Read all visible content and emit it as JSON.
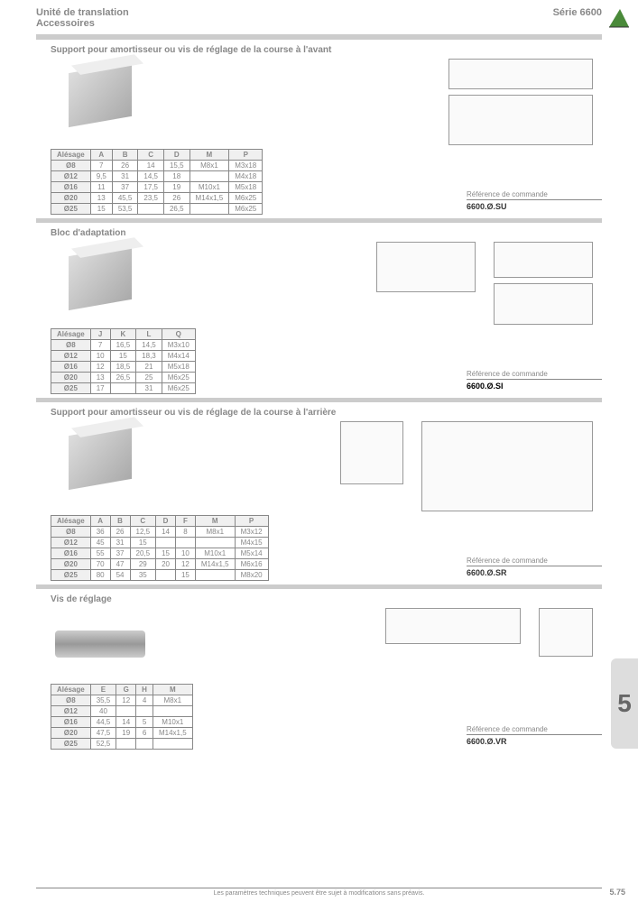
{
  "header": {
    "left1": "Unité de translation",
    "left2": "Accessoires",
    "right": "Série 6600"
  },
  "logo": {
    "fill": "#4a8a3a"
  },
  "sections": [
    {
      "title": "Support pour amortisseur ou vis de réglage de la course à l'avant",
      "cols": [
        "Alésage",
        "A",
        "B",
        "C",
        "D",
        "M",
        "P"
      ],
      "rows": [
        [
          "Ø8",
          "7",
          "26",
          "14",
          "15,5",
          "M8x1",
          "M3x18"
        ],
        [
          "Ø12",
          "9,5",
          "31",
          "14,5",
          "18",
          "",
          "M4x18"
        ],
        [
          "Ø16",
          "11",
          "37",
          "17,5",
          "19",
          "M10x1",
          "M5x18"
        ],
        [
          "Ø20",
          "13",
          "45,5",
          "23,5",
          "26",
          "M14x1,5",
          "M6x25"
        ],
        [
          "Ø25",
          "15",
          "53,5",
          "",
          "26,5",
          "",
          "M6x25"
        ]
      ],
      "ref": {
        "label": "Référence de commande",
        "value": "6600.Ø.SU"
      }
    },
    {
      "title": "Bloc d'adaptation",
      "cols": [
        "Alésage",
        "J",
        "K",
        "L",
        "Q"
      ],
      "rows": [
        [
          "Ø8",
          "7",
          "16,5",
          "14,5",
          "M3x10"
        ],
        [
          "Ø12",
          "10",
          "15",
          "18,3",
          "M4x14"
        ],
        [
          "Ø16",
          "12",
          "18,5",
          "21",
          "M5x18"
        ],
        [
          "Ø20",
          "13",
          "26,5",
          "25",
          "M6x25"
        ],
        [
          "Ø25",
          "17",
          "",
          "31",
          "M6x25"
        ]
      ],
      "ref": {
        "label": "Référence de commande",
        "value": "6600.Ø.SI",
        "clear": true
      }
    },
    {
      "title": "Support pour amortisseur ou vis de réglage de la course à l'arrière",
      "cols": [
        "Alésage",
        "A",
        "B",
        "C",
        "D",
        "F",
        "M",
        "P"
      ],
      "rows": [
        [
          "Ø8",
          "36",
          "26",
          "12,5",
          "14",
          "8",
          "M8x1",
          "M3x12"
        ],
        [
          "Ø12",
          "45",
          "31",
          "15",
          "",
          "",
          "",
          "M4x15"
        ],
        [
          "Ø16",
          "55",
          "37",
          "20,5",
          "15",
          "10",
          "M10x1",
          "M5x14"
        ],
        [
          "Ø20",
          "70",
          "47",
          "29",
          "20",
          "12",
          "M14x1,5",
          "M6x16"
        ],
        [
          "Ø25",
          "80",
          "54",
          "35",
          "",
          "15",
          "",
          "M8x20"
        ]
      ],
      "ref": {
        "label": "Référence de commande",
        "value": "6600.Ø.SR"
      }
    },
    {
      "title": "Vis de réglage",
      "cols": [
        "Alésage",
        "E",
        "G",
        "H",
        "M"
      ],
      "rows": [
        [
          "Ø8",
          "35,5",
          "12",
          "4",
          "M8x1"
        ],
        [
          "Ø12",
          "40",
          "",
          "",
          ""
        ],
        [
          "Ø16",
          "44,5",
          "14",
          "5",
          "M10x1"
        ],
        [
          "Ø20",
          "47,5",
          "19",
          "6",
          "M14x1,5"
        ],
        [
          "Ø25",
          "52,5",
          "",
          "",
          ""
        ]
      ],
      "ref": {
        "label": "Référence de commande",
        "value": "6600.Ø.VR"
      }
    }
  ],
  "footer": "Les paramètres techniques peuvent être sujet à modifications sans préavis.",
  "page": "5.75",
  "tab": "5"
}
